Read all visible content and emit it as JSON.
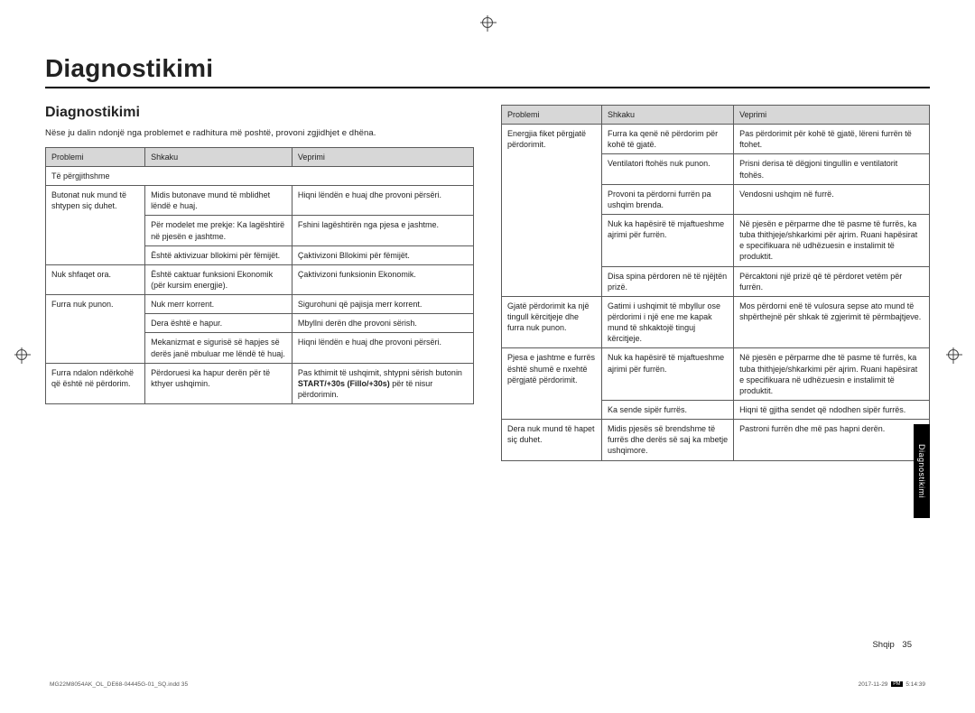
{
  "page_title": "Diagnostikimi",
  "sub_title": "Diagnostikimi",
  "intro": "Nëse ju dalin ndonjë nga problemet e radhitura më poshtë, provoni zgjidhjet e dhëna.",
  "headers": {
    "c1": "Problemi",
    "c2": "Shkaku",
    "c3": "Veprimi"
  },
  "section_label": "Të përgjithshme",
  "left_rows": [
    {
      "p": "Butonat nuk mund të shtypen siç duhet.",
      "c": "Midis butonave mund të mblidhet lëndë e huaj.",
      "a": "Hiqni lëndën e huaj dhe provoni përsëri."
    },
    {
      "p": "",
      "c": "Për modelet me prekje: Ka lagështirë në pjesën e jashtme.",
      "a": "Fshini lagështirën nga pjesa e jashtme."
    },
    {
      "p": "",
      "c": "Është aktivizuar bllokimi për fëmijët.",
      "a": "Çaktivizoni Bllokimi për fëmijët."
    },
    {
      "p": "Nuk shfaqet ora.",
      "c": "Është caktuar funksioni Ekonomik (për kursim energjie).",
      "a": "Çaktivizoni funksionin Ekonomik."
    },
    {
      "p": "Furra nuk punon.",
      "c": "Nuk merr korrent.",
      "a": "Sigurohuni që pajisja merr korrent."
    },
    {
      "p": "",
      "c": "Dera është e hapur.",
      "a": "Mbyllni derën dhe provoni sërish."
    },
    {
      "p": "",
      "c": "Mekanizmat e sigurisë së hapjes së derës janë mbuluar me lëndë të huaj.",
      "a": "Hiqni lëndën e huaj dhe provoni përsëri."
    },
    {
      "p": "Furra ndalon ndërkohë që është në përdorim.",
      "c": "Përdoruesi ka hapur derën për të kthyer ushqimin.",
      "a_pre": "Pas kthimit të ushqimit, shtypni sërish butonin ",
      "a_bold": "START/+30s (Fillo/+30s)",
      "a_post": " për të nisur përdorimin."
    }
  ],
  "right_rows": [
    {
      "p": "Energjia fiket përgjatë përdorimit.",
      "c": "Furra ka qenë në përdorim për kohë të gjatë.",
      "a": "Pas përdorimit për kohë të gjatë, lëreni furrën të ftohet."
    },
    {
      "p": "",
      "c": "Ventilatori ftohës nuk punon.",
      "a": "Prisni derisa të dëgjoni tingullin e ventilatorit ftohës."
    },
    {
      "p": "",
      "c": "Provoni ta përdorni furrën pa ushqim brenda.",
      "a": "Vendosni ushqim në furrë."
    },
    {
      "p": "",
      "c": "Nuk ka hapësirë të mjaftueshme ajrimi për furrën.",
      "a": "Në pjesën e përparme dhe të pasme të furrës, ka tuba thithjeje/shkarkimi për ajrim. Ruani hapësirat e specifikuara në udhëzuesin e instalimit të produktit."
    },
    {
      "p": "",
      "c": "Disa spina përdoren në të njëjtën prizë.",
      "a": "Përcaktoni një prizë që të përdoret vetëm për furrën."
    },
    {
      "p": "Gjatë përdorimit ka një tingull kërcitjeje dhe furra nuk punon.",
      "c": "Gatimi i ushqimit të mbyllur ose përdorimi i një ene me kapak mund të shkaktojë tinguj kërcitjeje.",
      "a": "Mos përdorni enë të vulosura sepse ato mund të shpërthejnë për shkak të zgjerimit të përmbajtjeve."
    },
    {
      "p": "Pjesa e jashtme e furrës është shumë e nxehtë përgjatë përdorimit.",
      "c": "Nuk ka hapësirë të mjaftueshme ajrimi për furrën.",
      "a": "Në pjesën e përparme dhe të pasme të furrës, ka tuba thithjeje/shkarkimi për ajrim. Ruani hapësirat e specifikuara në udhëzuesin e instalimit të produktit."
    },
    {
      "p": "",
      "c": "Ka sende sipër furrës.",
      "a": "Hiqni të gjitha sendet që ndodhen sipër furrës."
    },
    {
      "p": "Dera nuk mund të hapet siç duhet.",
      "c": "Midis pjesës së brendshme të furrës dhe derës së saj ka mbetje ushqimore.",
      "a": "Pastroni furrën dhe më pas hapni derën."
    }
  ],
  "side_tab": "Diagnostikimi",
  "footer_lang": "Shqip",
  "footer_page": "35",
  "footer_file": "MG22M8054AK_OL_DE68-04445G-01_SQ.indd   35",
  "footer_date": "2017-11-29",
  "footer_time": "5:14:39"
}
